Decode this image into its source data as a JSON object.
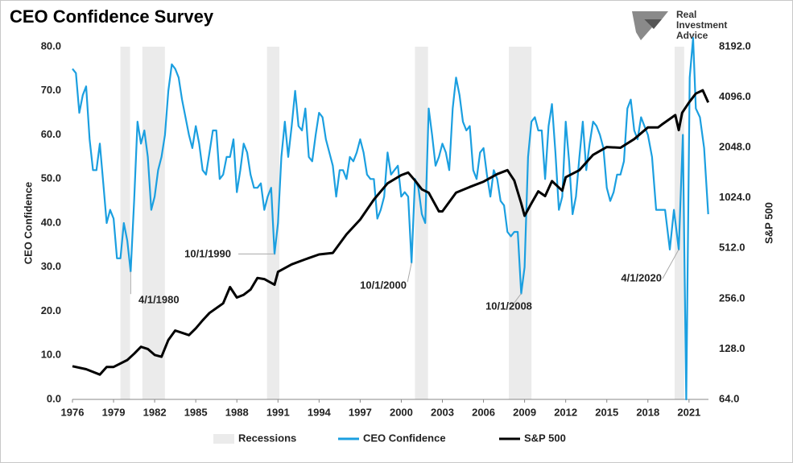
{
  "chart_data": {
    "type": "line",
    "title": "CEO Confidence Survey",
    "logo": [
      "Real",
      "Investment",
      "Advice"
    ],
    "ylabel": "CEO Confidence",
    "y2label": "S&P 500",
    "xlim": [
      1976,
      2022.42
    ],
    "xticks": [
      1976,
      1979,
      1982,
      1985,
      1988,
      1991,
      1994,
      1997,
      2000,
      2003,
      2006,
      2009,
      2012,
      2015,
      2018,
      2021
    ],
    "ylim": [
      0,
      80
    ],
    "yticks": [
      {
        "value": 0,
        "label": "0.0"
      },
      {
        "value": 10,
        "label": "10.0"
      },
      {
        "value": 20,
        "label": "20.0"
      },
      {
        "value": 30,
        "label": "30.0"
      },
      {
        "value": 40,
        "label": "40.0"
      },
      {
        "value": 50,
        "label": "50.0"
      },
      {
        "value": 60,
        "label": "60.0"
      },
      {
        "value": 70,
        "label": "70.0"
      },
      {
        "value": 80,
        "label": "80.0"
      }
    ],
    "y2lim": [
      64,
      8192
    ],
    "y2log": true,
    "y2ticks": [
      {
        "value": 64,
        "label": "64.0"
      },
      {
        "value": 128,
        "label": "128.0"
      },
      {
        "value": 256,
        "label": "256.0"
      },
      {
        "value": 512,
        "label": "512.0"
      },
      {
        "value": 1024,
        "label": "1024.0"
      },
      {
        "value": 2048,
        "label": "2048.0"
      },
      {
        "value": 4096,
        "label": "4096.0"
      },
      {
        "value": 8192,
        "label": "8192.0"
      }
    ],
    "grid": false,
    "legend": "bottom",
    "recessions": {
      "name": "Recessions",
      "color": "#ebebeb",
      "periods": [
        [
          1979.5,
          1980.2
        ],
        [
          1981.1,
          1982.75
        ],
        [
          1990.2,
          1991.1
        ],
        [
          2001.0,
          2001.95
        ],
        [
          2007.85,
          2009.5
        ],
        [
          2019.95,
          2020.65
        ]
      ]
    },
    "series": [
      {
        "name": "CEO Confidence",
        "color": "#1b9fe0",
        "axis": "y",
        "x": [
          1976,
          1976.25,
          1976.5,
          1976.75,
          1977,
          1977.25,
          1977.5,
          1977.75,
          1978,
          1978.25,
          1978.5,
          1978.75,
          1979,
          1979.25,
          1979.5,
          1979.75,
          1980,
          1980.25,
          1980.5,
          1980.75,
          1981,
          1981.25,
          1981.5,
          1981.75,
          1982,
          1982.25,
          1982.5,
          1982.75,
          1983,
          1983.25,
          1983.5,
          1983.75,
          1984,
          1984.25,
          1984.5,
          1984.75,
          1985,
          1985.25,
          1985.5,
          1985.75,
          1986,
          1986.25,
          1986.5,
          1986.75,
          1987,
          1987.25,
          1987.5,
          1987.75,
          1988,
          1988.25,
          1988.5,
          1988.75,
          1989,
          1989.25,
          1989.5,
          1989.75,
          1990,
          1990.25,
          1990.5,
          1990.75,
          1991,
          1991.25,
          1991.5,
          1991.75,
          1992,
          1992.25,
          1992.5,
          1992.75,
          1993,
          1993.25,
          1993.5,
          1993.75,
          1994,
          1994.25,
          1994.5,
          1994.75,
          1995,
          1995.25,
          1995.5,
          1995.75,
          1996,
          1996.25,
          1996.5,
          1996.75,
          1997,
          1997.25,
          1997.5,
          1997.75,
          1998,
          1998.25,
          1998.5,
          1998.75,
          1999,
          1999.25,
          1999.5,
          1999.75,
          2000,
          2000.25,
          2000.5,
          2000.75,
          2001,
          2001.25,
          2001.5,
          2001.75,
          2002,
          2002.25,
          2002.5,
          2002.75,
          2003,
          2003.25,
          2003.5,
          2003.75,
          2004,
          2004.25,
          2004.5,
          2004.75,
          2005,
          2005.25,
          2005.5,
          2005.75,
          2006,
          2006.25,
          2006.5,
          2006.75,
          2007,
          2007.25,
          2007.5,
          2007.75,
          2008,
          2008.25,
          2008.5,
          2008.75,
          2009,
          2009.25,
          2009.5,
          2009.75,
          2010,
          2010.25,
          2010.5,
          2010.75,
          2011,
          2011.25,
          2011.5,
          2011.75,
          2012,
          2012.25,
          2012.5,
          2012.75,
          2013,
          2013.25,
          2013.5,
          2013.75,
          2014,
          2014.25,
          2014.5,
          2014.75,
          2015,
          2015.25,
          2015.5,
          2015.75,
          2016,
          2016.25,
          2016.5,
          2016.75,
          2017,
          2017.25,
          2017.5,
          2017.75,
          2018,
          2018.3,
          2018.6,
          2018.9,
          2019.25,
          2019.6,
          2019.9,
          2020.25,
          2020.55,
          2020.8,
          2021.05,
          2021.3,
          2021.5,
          2021.8,
          2022.1,
          2022.4
        ],
        "values": [
          75,
          74,
          65,
          69,
          71,
          59,
          52,
          52,
          58,
          49,
          40,
          43,
          41,
          32,
          32,
          40,
          36,
          29,
          45,
          63,
          58,
          61,
          55,
          43,
          46,
          52,
          55,
          60,
          70,
          76,
          75,
          73,
          68,
          64,
          60,
          57,
          62,
          58,
          52,
          51,
          56,
          61,
          61,
          50,
          51,
          55,
          55,
          59,
          47,
          52,
          58,
          56,
          51,
          48,
          48,
          49,
          43,
          46,
          48,
          33,
          40,
          55,
          63,
          55,
          62,
          70,
          62,
          61,
          66,
          55,
          54,
          60,
          65,
          64,
          59,
          56,
          53,
          46,
          52,
          52,
          50,
          55,
          54,
          56,
          59,
          56,
          51,
          50,
          50,
          41,
          43,
          46,
          56,
          51,
          52,
          53,
          46,
          47,
          46,
          31,
          50,
          48,
          42,
          40,
          66,
          60,
          53,
          55,
          58,
          56,
          52,
          66,
          73,
          69,
          63,
          61,
          62,
          52,
          50,
          56,
          57,
          51,
          46,
          52,
          50,
          45,
          44,
          38,
          37,
          38,
          38,
          24,
          30,
          55,
          63,
          64,
          61,
          61,
          50,
          62,
          67,
          56,
          43,
          46,
          63,
          54,
          42,
          46,
          55,
          63,
          52,
          58,
          63,
          62,
          60,
          57,
          48,
          45,
          47,
          51,
          51,
          54,
          66,
          68,
          61,
          59,
          64,
          62,
          60,
          55,
          43,
          43,
          43,
          34,
          43,
          34,
          60,
          0,
          73,
          82,
          66,
          64,
          57,
          42
        ]
      },
      {
        "name": "S&P 500",
        "color": "#000000",
        "axis": "y2",
        "x": [
          1976,
          1977,
          1978,
          1978.5,
          1979,
          1980,
          1980.5,
          1981,
          1981.5,
          1982,
          1982.5,
          1983,
          1983.5,
          1984,
          1984.5,
          1985,
          1985.5,
          1986,
          1987,
          1987.5,
          1988,
          1988.5,
          1989,
          1989.5,
          1990,
          1990.75,
          1991,
          1992,
          1993,
          1994,
          1995,
          1996,
          1997,
          1998,
          1999,
          2000,
          2000.5,
          2001,
          2001.5,
          2002,
          2002.75,
          2003,
          2004,
          2005,
          2006,
          2007,
          2007.75,
          2008.25,
          2008.75,
          2009,
          2009.5,
          2010,
          2010.5,
          2011,
          2011.75,
          2012,
          2013,
          2014,
          2015,
          2016,
          2017,
          2018,
          2018.75,
          2019,
          2020,
          2020.25,
          2020.5,
          2021,
          2021.5,
          2022,
          2022.4
        ],
        "values": [
          101,
          97,
          90,
          100,
          100,
          110,
          120,
          132,
          128,
          118,
          115,
          145,
          165,
          160,
          155,
          170,
          190,
          210,
          240,
          300,
          260,
          270,
          290,
          340,
          335,
          310,
          370,
          410,
          440,
          470,
          480,
          620,
          760,
          1000,
          1250,
          1400,
          1450,
          1300,
          1150,
          1100,
          850,
          850,
          1100,
          1190,
          1280,
          1420,
          1500,
          1300,
          950,
          800,
          950,
          1120,
          1050,
          1290,
          1130,
          1360,
          1500,
          1850,
          2060,
          2040,
          2300,
          2700,
          2700,
          2800,
          3200,
          2600,
          3300,
          3800,
          4300,
          4500,
          3800
        ]
      }
    ],
    "annotations": [
      {
        "text": "4/1/1980",
        "x": 1980.25,
        "y": 29
      },
      {
        "text": "10/1/1990",
        "x": 1990.75,
        "y": 33
      },
      {
        "text": "10/1/2000",
        "x": 2000.75,
        "y": 31
      },
      {
        "text": "10/1/2008",
        "x": 2008.75,
        "y": 24
      },
      {
        "text": "4/1/2020",
        "x": 2020.25,
        "y": 34
      }
    ]
  }
}
